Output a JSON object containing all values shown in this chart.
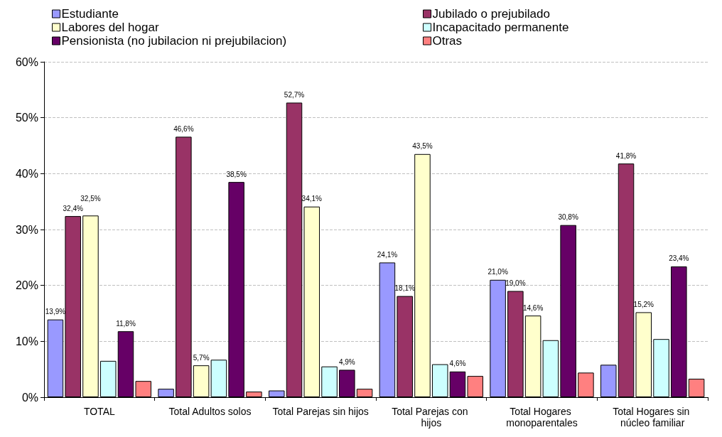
{
  "chart_data": {
    "type": "bar",
    "categories": [
      "TOTAL",
      "Total Adultos solos",
      "Total Parejas sin hijos",
      "Total Parejas con hijos",
      "Total Hogares monoparentales",
      "Total Hogares sin núcleo familiar"
    ],
    "series": [
      {
        "name": "Estudiante",
        "color": "#9999ff",
        "values": [
          13.9,
          1.5,
          1.2,
          24.1,
          21.0,
          5.8
        ],
        "value_labels": [
          "13,9%",
          null,
          null,
          "24,1%",
          "21,0%",
          null
        ]
      },
      {
        "name": "Jubilado o prejubilado",
        "color": "#993366",
        "values": [
          32.4,
          46.6,
          52.7,
          18.1,
          19.0,
          41.8
        ],
        "value_labels": [
          "32,4%",
          "46,6%",
          "52,7%",
          "18,1%",
          "19,0%",
          "41,8%"
        ]
      },
      {
        "name": "Labores del hogar",
        "color": "#ffffcc",
        "values": [
          32.5,
          5.7,
          34.1,
          43.5,
          14.6,
          15.2
        ],
        "value_labels": [
          "32,5%",
          "5,7%",
          "34,1%",
          "43,5%",
          "14,6%",
          "15,2%"
        ]
      },
      {
        "name": "Incapacitado permanente",
        "color": "#ccffff",
        "values": [
          6.5,
          6.7,
          5.5,
          5.9,
          10.2,
          10.4
        ],
        "value_labels": [
          null,
          null,
          null,
          null,
          null,
          null
        ]
      },
      {
        "name": "Pensionista (no jubilacion ni prejubilacion)",
        "color": "#660066",
        "values": [
          11.8,
          38.5,
          4.9,
          4.6,
          30.8,
          23.4
        ],
        "value_labels": [
          "11,8%",
          "38,5%",
          "4,9%",
          "4,6%",
          "30,8%",
          "23,4%"
        ]
      },
      {
        "name": "Otras",
        "color": "#ff8080",
        "values": [
          2.9,
          1.0,
          1.5,
          3.8,
          4.4,
          3.3
        ],
        "value_labels": [
          null,
          null,
          null,
          null,
          null,
          null
        ]
      }
    ],
    "ylim": [
      0,
      60
    ],
    "yticks": [
      {
        "value": 0,
        "label": "0%"
      },
      {
        "value": 10,
        "label": "10%"
      },
      {
        "value": 20,
        "label": "20%"
      },
      {
        "value": 30,
        "label": "30%"
      },
      {
        "value": 40,
        "label": "40%"
      },
      {
        "value": 50,
        "label": "50%"
      },
      {
        "value": 60,
        "label": "60%"
      }
    ],
    "grid": "y",
    "legend": "top"
  }
}
